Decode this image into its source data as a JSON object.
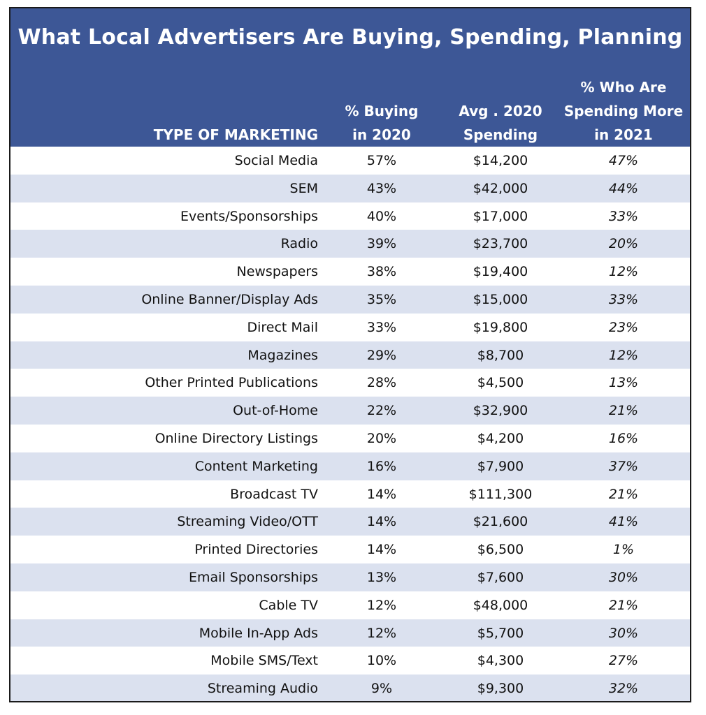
{
  "chart_data": {
    "type": "table",
    "title": "What Local Advertisers Are Buying, Spending, Planning",
    "columns": [
      "TYPE OF MARKETING",
      [
        "% Buying",
        "in 2020"
      ],
      [
        "Avg . 2020",
        "Spending"
      ],
      [
        "% Who Are",
        "Spending More",
        "in 2021"
      ]
    ],
    "rows": [
      {
        "type": "Social Media",
        "buying": "57%",
        "spending": "$14,200",
        "more": "47%"
      },
      {
        "type": "SEM",
        "buying": "43%",
        "spending": "$42,000",
        "more": "44%"
      },
      {
        "type": "Events/Sponsorships",
        "buying": "40%",
        "spending": "$17,000",
        "more": "33%"
      },
      {
        "type": "Radio",
        "buying": "39%",
        "spending": "$23,700",
        "more": "20%"
      },
      {
        "type": "Newspapers",
        "buying": "38%",
        "spending": "$19,400",
        "more": "12%"
      },
      {
        "type": "Online Banner/Display Ads",
        "buying": "35%",
        "spending": "$15,000",
        "more": "33%"
      },
      {
        "type": "Direct Mail",
        "buying": "33%",
        "spending": "$19,800",
        "more": "23%"
      },
      {
        "type": "Magazines",
        "buying": "29%",
        "spending": "$8,700",
        "more": "12%"
      },
      {
        "type": "Other Printed Publications",
        "buying": "28%",
        "spending": "$4,500",
        "more": "13%"
      },
      {
        "type": "Out-of-Home",
        "buying": "22%",
        "spending": "$32,900",
        "more": "21%"
      },
      {
        "type": "Online Directory Listings",
        "buying": "20%",
        "spending": "$4,200",
        "more": "16%"
      },
      {
        "type": "Content Marketing",
        "buying": "16%",
        "spending": "$7,900",
        "more": "37%"
      },
      {
        "type": "Broadcast TV",
        "buying": "14%",
        "spending": "$111,300",
        "more": "21%"
      },
      {
        "type": "Streaming Video/OTT",
        "buying": "14%",
        "spending": "$21,600",
        "more": "41%"
      },
      {
        "type": "Printed Directories",
        "buying": "14%",
        "spending": "$6,500",
        "more": "1%"
      },
      {
        "type": "Email Sponsorships",
        "buying": "13%",
        "spending": "$7,600",
        "more": "30%"
      },
      {
        "type": "Cable TV",
        "buying": "12%",
        "spending": "$48,000",
        "more": "21%"
      },
      {
        "type": "Mobile In-App Ads",
        "buying": "12%",
        "spending": "$5,700",
        "more": "30%"
      },
      {
        "type": "Mobile SMS/Text",
        "buying": "10%",
        "spending": "$4,300",
        "more": "27%"
      },
      {
        "type": "Streaming Audio",
        "buying": "9%",
        "spending": "$9,300",
        "more": "32%"
      }
    ]
  },
  "colors": {
    "header_bg": "#3d5796",
    "header_text": "#ffffff",
    "row_alt_bg": "#dbe1ef",
    "row_bg": "#ffffff",
    "border": "#1a1a1a"
  }
}
